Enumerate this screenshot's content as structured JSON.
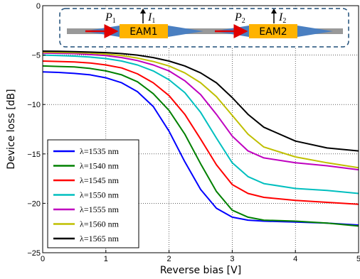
{
  "chart_data": {
    "type": "line",
    "xlabel": "Reverse bias [V]",
    "ylabel": "Device loss [dB]",
    "xlim": [
      0,
      5
    ],
    "ylim": [
      -25,
      0
    ],
    "x_ticks": [
      "0",
      "1",
      "2",
      "3",
      "4",
      "5"
    ],
    "y_ticks": [
      "0",
      "−5",
      "−10",
      "−15",
      "−20",
      "−25"
    ],
    "grid": true,
    "legend_position": "bottom-left",
    "series": [
      {
        "name": "λ=1535 nm",
        "color": "#0000ff",
        "x": [
          0,
          0.25,
          0.5,
          0.75,
          1,
          1.25,
          1.5,
          1.75,
          2,
          2.25,
          2.5,
          2.75,
          3,
          3.25,
          3.5,
          4,
          4.5,
          5
        ],
        "y": [
          -6.7,
          -6.75,
          -6.85,
          -7.0,
          -7.3,
          -7.8,
          -8.7,
          -10.2,
          -12.7,
          -15.8,
          -18.6,
          -20.5,
          -21.4,
          -21.7,
          -21.8,
          -21.9,
          -22.0,
          -22.2
        ]
      },
      {
        "name": "λ=1540 nm",
        "color": "#008000",
        "x": [
          0,
          0.25,
          0.5,
          0.75,
          1,
          1.25,
          1.5,
          1.75,
          2,
          2.25,
          2.5,
          2.75,
          3,
          3.25,
          3.5,
          4,
          4.5,
          5
        ],
        "y": [
          -6.1,
          -6.15,
          -6.2,
          -6.35,
          -6.6,
          -7.0,
          -7.7,
          -8.9,
          -10.6,
          -13.0,
          -16.0,
          -18.8,
          -20.7,
          -21.4,
          -21.7,
          -21.8,
          -22.0,
          -22.3
        ]
      },
      {
        "name": "λ=1545 nm",
        "color": "#ff0000",
        "x": [
          0,
          0.25,
          0.5,
          0.75,
          1,
          1.25,
          1.5,
          1.75,
          2,
          2.25,
          2.5,
          2.75,
          3,
          3.25,
          3.5,
          4,
          4.5,
          5
        ],
        "y": [
          -5.6,
          -5.65,
          -5.7,
          -5.8,
          -6.0,
          -6.3,
          -6.9,
          -7.8,
          -9.1,
          -11.0,
          -13.5,
          -16.1,
          -18.1,
          -19.0,
          -19.4,
          -19.7,
          -19.9,
          -20.1
        ]
      },
      {
        "name": "λ=1550 nm",
        "color": "#00bfbf",
        "x": [
          0,
          0.25,
          0.5,
          0.75,
          1,
          1.25,
          1.5,
          1.75,
          2,
          2.25,
          2.5,
          2.75,
          3,
          3.25,
          3.5,
          4,
          4.5,
          5
        ],
        "y": [
          -5.0,
          -5.05,
          -5.1,
          -5.2,
          -5.35,
          -5.6,
          -6.0,
          -6.6,
          -7.5,
          -8.8,
          -10.8,
          -13.4,
          -15.9,
          -17.3,
          -18.0,
          -18.5,
          -18.7,
          -19.0
        ]
      },
      {
        "name": "λ=1555 nm",
        "color": "#bf00bf",
        "x": [
          0,
          0.25,
          0.5,
          0.75,
          1,
          1.25,
          1.5,
          1.75,
          2,
          2.25,
          2.5,
          2.75,
          3,
          3.25,
          3.5,
          4,
          4.5,
          5
        ],
        "y": [
          -4.8,
          -4.82,
          -4.85,
          -4.95,
          -5.05,
          -5.25,
          -5.55,
          -6.0,
          -6.6,
          -7.6,
          -9.0,
          -11.0,
          -13.2,
          -14.7,
          -15.4,
          -15.9,
          -16.2,
          -16.6
        ]
      },
      {
        "name": "λ=1560 nm",
        "color": "#bfbf00",
        "x": [
          0,
          0.25,
          0.5,
          0.75,
          1,
          1.25,
          1.5,
          1.75,
          2,
          2.25,
          2.5,
          2.75,
          3,
          3.25,
          3.5,
          4,
          4.5,
          5
        ],
        "y": [
          -4.7,
          -4.72,
          -4.75,
          -4.8,
          -4.9,
          -5.05,
          -5.3,
          -5.65,
          -6.1,
          -6.8,
          -7.8,
          -9.2,
          -11.1,
          -13.0,
          -14.3,
          -15.3,
          -15.9,
          -16.4
        ]
      },
      {
        "name": "λ=1565 nm",
        "color": "#000000",
        "x": [
          0,
          0.25,
          0.5,
          0.75,
          1,
          1.25,
          1.5,
          1.75,
          2,
          2.25,
          2.5,
          2.75,
          3,
          3.25,
          3.5,
          4,
          4.5,
          5
        ],
        "y": [
          -4.6,
          -4.62,
          -4.65,
          -4.7,
          -4.75,
          -4.85,
          -5.0,
          -5.25,
          -5.6,
          -6.1,
          -6.8,
          -7.8,
          -9.3,
          -11.0,
          -12.3,
          -13.7,
          -14.4,
          -14.7
        ]
      }
    ]
  },
  "inset": {
    "p1": "P",
    "p1_sub": "1",
    "i1": "I",
    "i1_sub": "1",
    "p2": "P",
    "p2_sub": "2",
    "i2": "I",
    "i2_sub": "2",
    "eam1": "EAM1",
    "eam2": "EAM2"
  }
}
